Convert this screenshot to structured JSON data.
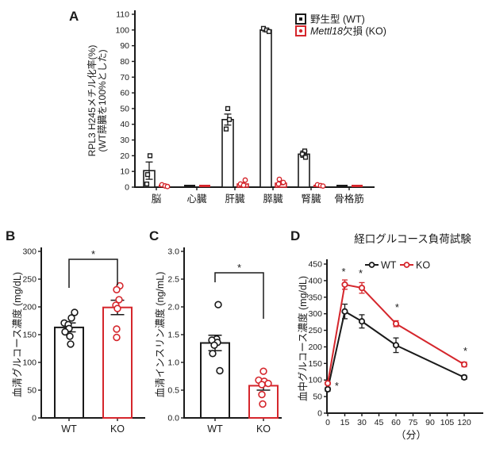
{
  "figure": {
    "background": "#ffffff"
  },
  "colors": {
    "wt": "#1a1a1a",
    "ko": "#d5262c"
  },
  "panels": {
    "a": {
      "label": "A"
    },
    "b": {
      "label": "B"
    },
    "c": {
      "label": "C"
    },
    "d": {
      "label": "D"
    }
  },
  "chart_data": [
    {
      "id": "panel-a",
      "type": "bar",
      "ylabel_lines": [
        "RPL3 H245メチル化率(%)",
        "(WT膵臓を100%とした)"
      ],
      "ylim": [
        0,
        110
      ],
      "yticks": [
        0,
        10,
        20,
        30,
        40,
        50,
        60,
        70,
        80,
        90,
        100,
        110
      ],
      "categories": [
        "脳",
        "心臓",
        "肝臓",
        "膵臓",
        "腎臓",
        "骨格筋"
      ],
      "legend": {
        "wt": "野生型 (WT)",
        "ko_italic": "Mettl18",
        "ko_rest": "欠損 (KO)"
      },
      "series": [
        {
          "name": "野生型 (WT)",
          "color": "#1a1a1a",
          "marker": "square",
          "values": [
            10.5,
            0.3,
            43,
            100,
            21,
            0.3
          ],
          "errors": [
            5.5,
            0,
            3.5,
            1,
            2,
            0
          ],
          "points": [
            [
              20,
              8,
              2
            ],
            [],
            [
              50,
              43,
              37
            ],
            [
              101,
              100,
              99
            ],
            [
              23,
              21,
              19
            ],
            []
          ],
          "dx": [
            [
              1,
              -2,
              -3
            ],
            [],
            [
              0,
              2,
              -2
            ],
            [
              -3,
              1,
              4
            ],
            [
              1,
              -2,
              2
            ],
            []
          ]
        },
        {
          "name": "Mettl18欠損 (KO)",
          "color": "#d5262c",
          "marker": "circle",
          "values": [
            0.8,
            0.2,
            2,
            2.5,
            1,
            0.2
          ],
          "errors": [
            0,
            0,
            1,
            1,
            0.5,
            0
          ],
          "points": [
            [
              1.5,
              0.8,
              0.4
            ],
            [],
            [
              4.5,
              2,
              1.2
            ],
            [
              5,
              3,
              2
            ],
            [
              1.5,
              1,
              0.7
            ],
            []
          ],
          "dx": [
            [
              -3,
              1,
              4
            ],
            [],
            [
              3,
              -3,
              1
            ],
            [
              -2,
              3,
              -3
            ],
            [
              -2,
              2,
              5
            ],
            []
          ]
        }
      ]
    },
    {
      "id": "panel-b",
      "type": "bar",
      "ylabel": "血清グルコース濃度 (mg/dL)",
      "ylim": [
        0,
        300
      ],
      "yticks": [
        0,
        50,
        100,
        150,
        200,
        250,
        300
      ],
      "categories": [
        "WT",
        "KO"
      ],
      "bars": [
        {
          "name": "WT",
          "color": "#1a1a1a",
          "mean": 163,
          "err": 8,
          "points": [
            190,
            180,
            171,
            168,
            161,
            155,
            147,
            133
          ],
          "dx": [
            7,
            3,
            -6,
            -1,
            0,
            -5,
            1,
            2
          ]
        },
        {
          "name": "KO",
          "color": "#d5262c",
          "mean": 199,
          "err": 13,
          "points": [
            238,
            231,
            213,
            203,
            197,
            160,
            145
          ],
          "dx": [
            3,
            -1,
            2,
            -2,
            0,
            -1,
            -1
          ]
        }
      ],
      "significance": "*"
    },
    {
      "id": "panel-c",
      "type": "bar",
      "ylabel": "血清インスリン濃度 (ng/mL)",
      "ylim": [
        0,
        3
      ],
      "yticks": [
        "0.0",
        "0.5",
        "1.0",
        "1.5",
        "2.0",
        "2.5",
        "3.0"
      ],
      "categories": [
        "WT",
        "KO"
      ],
      "bars": [
        {
          "name": "WT",
          "color": "#1a1a1a",
          "mean": 1.35,
          "err": 0.14,
          "points": [
            2.04,
            1.42,
            1.4,
            1.36,
            1.31,
            1.16,
            0.85
          ],
          "dx": [
            4,
            2,
            -4,
            3,
            -1,
            -3,
            6
          ]
        },
        {
          "name": "KO",
          "color": "#d5262c",
          "mean": 0.58,
          "err": 0.08,
          "points": [
            0.84,
            0.68,
            0.66,
            0.62,
            0.6,
            0.42,
            0.25
          ],
          "dx": [
            0,
            -6,
            1,
            6,
            -2,
            -2,
            -1
          ]
        }
      ],
      "significance": "*"
    },
    {
      "id": "panel-d",
      "type": "line",
      "title": "経口グルコース負荷試験",
      "ylabel": "血中グルコース濃度 (mg/dL)",
      "xlabel": "（分）",
      "ylim": [
        0,
        450
      ],
      "yticks": [
        0,
        50,
        100,
        150,
        200,
        250,
        300,
        350,
        400,
        450
      ],
      "xticks": [
        0,
        15,
        30,
        45,
        60,
        75,
        90,
        105,
        120
      ],
      "x": [
        0,
        15,
        30,
        60,
        120
      ],
      "series": [
        {
          "name": "WT",
          "color": "#1a1a1a",
          "values": [
            72,
            307,
            277,
            205,
            108
          ],
          "errors": [
            6,
            22,
            20,
            22,
            6
          ]
        },
        {
          "name": "KO",
          "color": "#d5262c",
          "values": [
            90,
            388,
            378,
            270,
            147
          ],
          "errors": [
            5,
            14,
            16,
            9,
            7
          ]
        }
      ],
      "asterisks": [
        {
          "x": 8,
          "y": 81
        },
        {
          "x": 14,
          "y": 426
        },
        {
          "x": 29,
          "y": 421
        },
        {
          "x": 61,
          "y": 318
        },
        {
          "x": 121,
          "y": 187
        }
      ]
    }
  ]
}
